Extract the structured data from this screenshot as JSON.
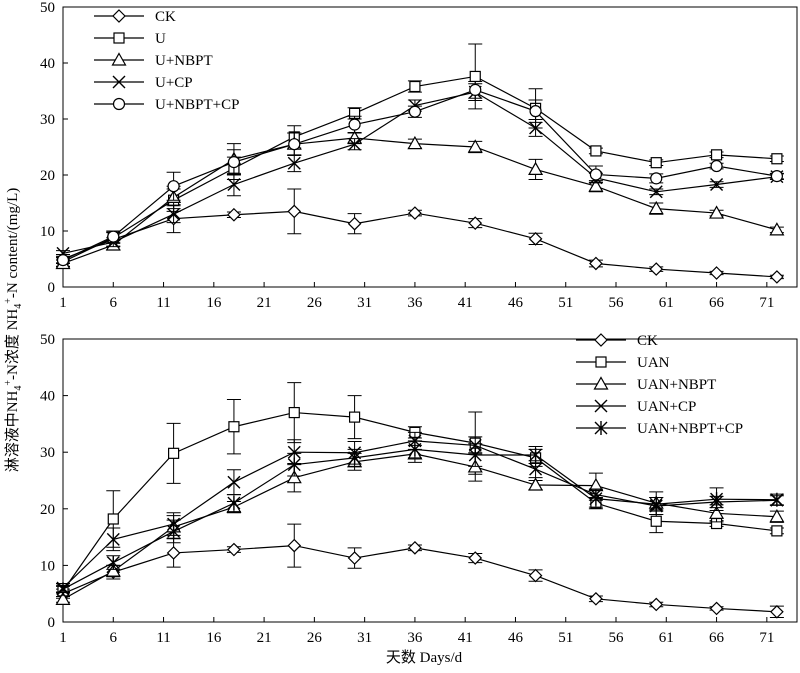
{
  "y_label": {
    "cn": "淋溶液中NH",
    "sub": "4",
    "sup": "+",
    "mid": "-N浓度 NH",
    "mid_sub": "4",
    "mid_sup": "+",
    "end": "-N content/(mg/L)"
  },
  "x_label": "天数 Days/d",
  "chart_data": [
    {
      "type": "line",
      "x": [
        1,
        6,
        12,
        18,
        24,
        30,
        36,
        42,
        48,
        54,
        60,
        66,
        72
      ],
      "xticks": [
        "1",
        "6",
        "11",
        "16",
        "21",
        "26",
        "31",
        "36",
        "41",
        "46",
        "51",
        "56",
        "61",
        "66",
        "71"
      ],
      "xtick_values": [
        1,
        6,
        11,
        16,
        21,
        26,
        31,
        36,
        41,
        46,
        51,
        56,
        61,
        66,
        71
      ],
      "yticks": [
        "0",
        "10",
        "20",
        "30",
        "40",
        "50"
      ],
      "ylim": [
        0,
        50
      ],
      "xlim": [
        1,
        74
      ],
      "legend": "top-left",
      "grid": false,
      "series": [
        {
          "name": "CK",
          "marker": "diamond",
          "values": [
            5.0,
            8.5,
            12.2,
            12.9,
            13.5,
            11.3,
            13.2,
            11.4,
            8.6,
            4.2,
            3.2,
            2.5,
            1.8
          ],
          "errors": [
            0.8,
            1.2,
            2.5,
            0.5,
            4.0,
            1.8,
            0.5,
            0.8,
            1.0,
            0.6,
            0.4,
            0.3,
            0.3
          ]
        },
        {
          "name": "U",
          "marker": "square",
          "values": [
            4.5,
            8.8,
            15.5,
            21.2,
            26.8,
            31.0,
            35.8,
            37.6,
            31.9,
            24.3,
            22.2,
            23.6,
            22.9
          ],
          "errors": [
            0.8,
            1.0,
            2.0,
            2.0,
            2.0,
            1.0,
            1.0,
            5.8,
            3.5,
            0.5,
            0.5,
            0.5,
            0.5
          ]
        },
        {
          "name": "U+NBPT",
          "marker": "triangle",
          "values": [
            4.2,
            7.5,
            16.0,
            22.8,
            25.5,
            26.6,
            25.6,
            25.0,
            21.0,
            18.0,
            14.0,
            13.2,
            10.2
          ],
          "errors": [
            0.6,
            0.8,
            2.0,
            2.8,
            2.0,
            1.0,
            0.8,
            1.0,
            1.8,
            1.0,
            1.0,
            0.5,
            0.5
          ]
        },
        {
          "name": "U+CP",
          "marker": "cross",
          "values": [
            6.0,
            8.0,
            13.0,
            18.3,
            22.1,
            25.5,
            32.4,
            34.8,
            28.4,
            19.5,
            17.0,
            18.3,
            19.7
          ],
          "errors": [
            0.5,
            0.8,
            1.5,
            2.0,
            1.5,
            1.0,
            1.0,
            1.5,
            1.5,
            0.8,
            0.5,
            0.5,
            0.5
          ]
        },
        {
          "name": "U+NBPT+CP",
          "marker": "circle",
          "values": [
            4.8,
            9.0,
            18.0,
            22.3,
            25.5,
            29.0,
            31.3,
            35.2,
            31.4,
            20.1,
            19.4,
            21.6,
            19.8
          ],
          "errors": [
            0.5,
            1.0,
            2.5,
            2.2,
            2.0,
            1.5,
            1.0,
            1.5,
            2.0,
            1.5,
            0.8,
            0.5,
            0.5
          ]
        }
      ]
    },
    {
      "type": "line",
      "x": [
        1,
        6,
        12,
        18,
        24,
        30,
        36,
        42,
        48,
        54,
        60,
        66,
        72
      ],
      "xticks": [
        "1",
        "6",
        "11",
        "16",
        "21",
        "26",
        "31",
        "36",
        "41",
        "46",
        "51",
        "56",
        "61",
        "66",
        "71"
      ],
      "xtick_values": [
        1,
        6,
        11,
        16,
        21,
        26,
        31,
        36,
        41,
        46,
        51,
        56,
        61,
        66,
        71
      ],
      "yticks": [
        "0",
        "10",
        "20",
        "30",
        "40",
        "50"
      ],
      "ylim": [
        0,
        50
      ],
      "xlim": [
        1,
        74
      ],
      "legend": "top-right",
      "grid": false,
      "series": [
        {
          "name": "CK",
          "marker": "diamond",
          "values": [
            5.0,
            8.8,
            12.2,
            12.8,
            13.5,
            11.3,
            13.1,
            11.3,
            8.2,
            4.1,
            3.1,
            2.4,
            1.8
          ],
          "errors": [
            0.8,
            1.2,
            2.5,
            0.5,
            3.8,
            1.8,
            0.5,
            0.8,
            1.0,
            0.5,
            0.4,
            0.3,
            1.0
          ]
        },
        {
          "name": "UAN",
          "marker": "square",
          "values": [
            5.5,
            18.2,
            29.8,
            34.5,
            37.0,
            36.2,
            33.5,
            31.6,
            29.0,
            21.0,
            17.8,
            17.4,
            16.1
          ],
          "errors": [
            1.0,
            5.0,
            5.3,
            4.8,
            5.3,
            3.8,
            1.0,
            5.5,
            1.5,
            1.0,
            2.0,
            0.5,
            0.5
          ]
        },
        {
          "name": "UAN+NBPT",
          "marker": "triangle",
          "values": [
            4.0,
            9.0,
            16.8,
            20.3,
            25.5,
            28.3,
            29.7,
            27.4,
            24.2,
            24.1,
            21.0,
            19.2,
            18.6
          ],
          "errors": [
            0.5,
            1.0,
            2.0,
            1.0,
            2.5,
            1.5,
            1.5,
            2.5,
            0.8,
            2.2,
            2.0,
            1.5,
            1.0
          ]
        },
        {
          "name": "UAN+CP",
          "marker": "cross",
          "values": [
            6.0,
            14.6,
            17.3,
            24.7,
            30.0,
            29.9,
            32.0,
            31.2,
            27.0,
            22.5,
            20.5,
            21.2,
            21.5
          ],
          "errors": [
            0.8,
            2.0,
            2.0,
            2.2,
            2.2,
            2.0,
            1.5,
            1.5,
            1.5,
            1.0,
            1.5,
            1.0,
            0.8
          ]
        },
        {
          "name": "UAN+NBPT+CP",
          "marker": "asterisk",
          "values": [
            5.8,
            10.5,
            16.0,
            21.0,
            27.8,
            29.0,
            30.5,
            29.5,
            29.5,
            21.8,
            20.8,
            21.7,
            21.6
          ],
          "errors": [
            0.5,
            1.2,
            2.0,
            1.5,
            2.0,
            1.5,
            1.5,
            2.0,
            1.5,
            1.5,
            1.2,
            2.0,
            1.0
          ]
        }
      ]
    }
  ]
}
